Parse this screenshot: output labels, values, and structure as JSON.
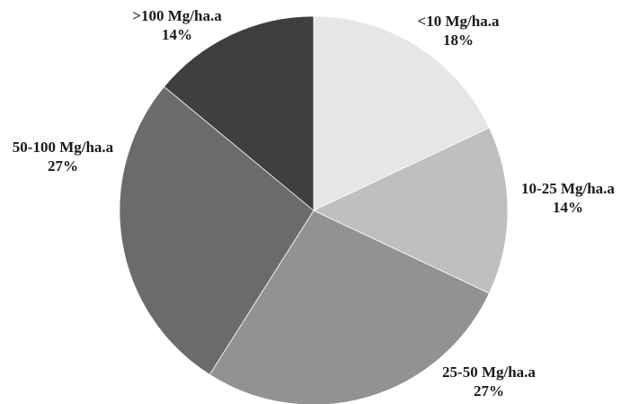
{
  "chart_data": {
    "type": "pie",
    "title": "",
    "start_angle_deg": 0,
    "direction": "clockwise",
    "slices": [
      {
        "label": "<10 Mg/ha.a",
        "value": 18,
        "value_label": "18%",
        "color": "#e6e6e6"
      },
      {
        "label": "10-25 Mg/ha.a",
        "value": 14,
        "value_label": "14%",
        "color": "#bfbfc1"
      },
      {
        "label": "25-50 Mg/ha.a",
        "value": 27,
        "value_label": "27%",
        "color": "#929294"
      },
      {
        "label": "50-100 Mg/ha.a",
        "value": 27,
        "value_label": "27%",
        "color": "#6b6b6b"
      },
      {
        "label": ">100 Mg/ha.a",
        "value": 14,
        "value_label": "14%",
        "color": "#3f3f3f"
      }
    ]
  }
}
